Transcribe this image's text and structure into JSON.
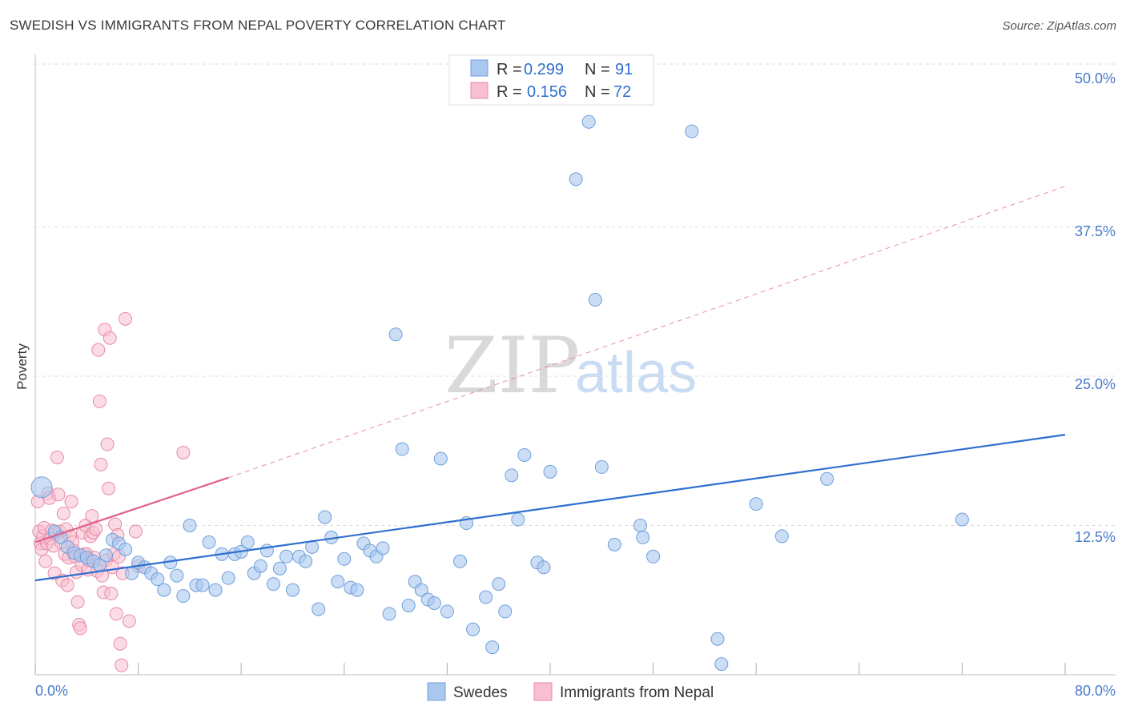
{
  "title": "SWEDISH VS IMMIGRANTS FROM NEPAL POVERTY CORRELATION CHART",
  "source": "Source: ZipAtlas.com",
  "watermark": {
    "zip": "ZIP",
    "atlas": "atlas"
  },
  "colors": {
    "blue_fill": "#a9c8ef",
    "blue_stroke": "#6f9fdc",
    "blue_line": "#2f6fcf",
    "pink_fill": "#f7bfd0",
    "pink_stroke": "#e88aa8",
    "pink_line": "#e0608a",
    "grid": "#dddddd",
    "tick_text": "#4a7cc8"
  },
  "legend": {
    "row1": {
      "r_label": "R = ",
      "r_value": "0.299",
      "n_label": "N = ",
      "n_value": "91"
    },
    "row2": {
      "r_label": "R = ",
      "r_value": "0.156",
      "n_label": "N = ",
      "n_value": "72"
    }
  },
  "chart_data": {
    "type": "scatter",
    "title": "SWEDISH VS IMMIGRANTS FROM NEPAL POVERTY CORRELATION CHART",
    "xlabel": "",
    "ylabel": "Poverty",
    "xlim": [
      0,
      80
    ],
    "ylim": [
      0,
      50
    ],
    "x_tick_labels": [
      "0.0%",
      "80.0%"
    ],
    "y_ticks": [
      12.5,
      25.0,
      37.5,
      50.0
    ],
    "y_tick_labels": [
      "12.5%",
      "25.0%",
      "37.5%",
      "50.0%"
    ],
    "legend_position": "bottom",
    "series": [
      {
        "name": "Swedes",
        "color": "#a9c8ef",
        "r": 0.299,
        "n": 91,
        "trend": {
          "x": [
            0,
            80
          ],
          "y": [
            7.9,
            20.1
          ],
          "style": "solid"
        },
        "points": [
          [
            0.5,
            15.7
          ],
          [
            1.5,
            12.0
          ],
          [
            2.0,
            11.5
          ],
          [
            2.5,
            10.7
          ],
          [
            3.0,
            10.2
          ],
          [
            3.5,
            10.0
          ],
          [
            4.0,
            9.8
          ],
          [
            4.5,
            9.5
          ],
          [
            5.0,
            9.2
          ],
          [
            5.5,
            10.0
          ],
          [
            6.0,
            11.3
          ],
          [
            6.5,
            11.0
          ],
          [
            7.0,
            10.5
          ],
          [
            7.5,
            8.5
          ],
          [
            8.0,
            9.4
          ],
          [
            8.5,
            9.0
          ],
          [
            9.0,
            8.5
          ],
          [
            9.5,
            8.0
          ],
          [
            10.0,
            7.1
          ],
          [
            10.5,
            9.4
          ],
          [
            11.0,
            8.3
          ],
          [
            11.5,
            6.6
          ],
          [
            12.0,
            12.5
          ],
          [
            12.5,
            7.5
          ],
          [
            13.0,
            7.5
          ],
          [
            13.5,
            11.1
          ],
          [
            14.0,
            7.1
          ],
          [
            14.5,
            10.1
          ],
          [
            15.0,
            8.1
          ],
          [
            15.5,
            10.1
          ],
          [
            16.0,
            10.3
          ],
          [
            16.5,
            11.1
          ],
          [
            17.0,
            8.5
          ],
          [
            17.5,
            9.1
          ],
          [
            18.0,
            10.4
          ],
          [
            18.5,
            7.6
          ],
          [
            19.0,
            8.9
          ],
          [
            19.5,
            9.9
          ],
          [
            20.0,
            7.1
          ],
          [
            20.5,
            9.9
          ],
          [
            21.0,
            9.5
          ],
          [
            21.5,
            10.7
          ],
          [
            22.0,
            5.5
          ],
          [
            22.5,
            13.2
          ],
          [
            23.0,
            11.5
          ],
          [
            23.5,
            7.8
          ],
          [
            24.0,
            9.7
          ],
          [
            24.5,
            7.3
          ],
          [
            25.0,
            7.1
          ],
          [
            25.5,
            11.0
          ],
          [
            26.0,
            10.4
          ],
          [
            26.5,
            9.9
          ],
          [
            27.0,
            10.6
          ],
          [
            27.5,
            5.1
          ],
          [
            28.0,
            28.5
          ],
          [
            28.5,
            18.9
          ],
          [
            29.0,
            5.8
          ],
          [
            29.5,
            7.8
          ],
          [
            30.0,
            7.1
          ],
          [
            30.5,
            6.3
          ],
          [
            31.0,
            6.0
          ],
          [
            31.5,
            18.1
          ],
          [
            32.0,
            5.3
          ],
          [
            33.0,
            9.5
          ],
          [
            33.5,
            12.7
          ],
          [
            34.0,
            3.8
          ],
          [
            35.0,
            6.5
          ],
          [
            35.5,
            2.3
          ],
          [
            36.0,
            7.6
          ],
          [
            36.5,
            5.3
          ],
          [
            37.0,
            16.7
          ],
          [
            37.5,
            13.0
          ],
          [
            38.0,
            18.4
          ],
          [
            39.0,
            9.4
          ],
          [
            39.5,
            9.0
          ],
          [
            40.0,
            17.0
          ],
          [
            42.0,
            41.5
          ],
          [
            43.0,
            46.3
          ],
          [
            43.5,
            31.4
          ],
          [
            44.0,
            17.4
          ],
          [
            45.0,
            10.9
          ],
          [
            47.0,
            12.5
          ],
          [
            47.2,
            11.5
          ],
          [
            48.0,
            9.9
          ],
          [
            51.0,
            45.5
          ],
          [
            53.0,
            3.0
          ],
          [
            53.3,
            0.9
          ],
          [
            56.0,
            14.3
          ],
          [
            58.0,
            11.6
          ],
          [
            61.5,
            16.4
          ],
          [
            72.0,
            13.0
          ]
        ]
      },
      {
        "name": "Immigrants from Nepal",
        "color": "#f7bfd0",
        "r": 0.156,
        "n": 72,
        "trend_solid": {
          "x": [
            0,
            15
          ],
          "y": [
            11.1,
            16.5
          ],
          "style": "solid"
        },
        "trend_dashed": {
          "x": [
            15,
            80
          ],
          "y": [
            16.5,
            40.9
          ],
          "style": "dashed"
        },
        "points": [
          [
            0.2,
            14.5
          ],
          [
            0.3,
            12.0
          ],
          [
            0.4,
            11.0
          ],
          [
            0.5,
            10.5
          ],
          [
            0.6,
            11.6
          ],
          [
            0.7,
            12.3
          ],
          [
            0.8,
            9.5
          ],
          [
            0.9,
            11.0
          ],
          [
            1.0,
            15.2
          ],
          [
            1.1,
            14.8
          ],
          [
            1.2,
            11.4
          ],
          [
            1.3,
            12.1
          ],
          [
            1.4,
            10.8
          ],
          [
            1.5,
            8.5
          ],
          [
            1.6,
            11.8
          ],
          [
            1.7,
            18.2
          ],
          [
            1.8,
            15.1
          ],
          [
            1.9,
            12.0
          ],
          [
            2.0,
            11.1
          ],
          [
            2.1,
            7.9
          ],
          [
            2.2,
            13.5
          ],
          [
            2.3,
            10.1
          ],
          [
            2.4,
            12.2
          ],
          [
            2.5,
            7.5
          ],
          [
            2.6,
            9.8
          ],
          [
            2.7,
            11.6
          ],
          [
            2.8,
            14.5
          ],
          [
            2.9,
            11.1
          ],
          [
            3.0,
            10.4
          ],
          [
            3.1,
            9.9
          ],
          [
            3.2,
            8.6
          ],
          [
            3.3,
            6.1
          ],
          [
            3.4,
            4.2
          ],
          [
            3.5,
            3.9
          ],
          [
            3.6,
            9.2
          ],
          [
            3.7,
            11.9
          ],
          [
            3.8,
            10.1
          ],
          [
            3.9,
            12.5
          ],
          [
            4.0,
            10.1
          ],
          [
            4.1,
            8.8
          ],
          [
            4.2,
            9.6
          ],
          [
            4.3,
            11.6
          ],
          [
            4.4,
            13.3
          ],
          [
            4.5,
            11.9
          ],
          [
            4.6,
            9.8
          ],
          [
            4.7,
            12.2
          ],
          [
            4.8,
            8.7
          ],
          [
            4.9,
            27.2
          ],
          [
            5.0,
            22.9
          ],
          [
            5.1,
            17.6
          ],
          [
            5.2,
            8.3
          ],
          [
            5.3,
            6.9
          ],
          [
            5.4,
            28.9
          ],
          [
            5.5,
            9.6
          ],
          [
            5.6,
            19.3
          ],
          [
            5.7,
            15.6
          ],
          [
            5.8,
            28.2
          ],
          [
            5.9,
            6.8
          ],
          [
            6.0,
            9.0
          ],
          [
            6.1,
            10.1
          ],
          [
            6.2,
            12.6
          ],
          [
            6.3,
            5.1
          ],
          [
            6.4,
            11.7
          ],
          [
            6.5,
            9.9
          ],
          [
            6.6,
            2.6
          ],
          [
            6.7,
            0.8
          ],
          [
            6.8,
            8.5
          ],
          [
            7.0,
            29.8
          ],
          [
            7.3,
            4.5
          ],
          [
            7.8,
            12.0
          ],
          [
            8.0,
            9.1
          ],
          [
            11.5,
            18.6
          ]
        ]
      }
    ]
  },
  "bottom_legend": {
    "swedes": "Swedes",
    "nepal": "Immigrants from Nepal"
  }
}
